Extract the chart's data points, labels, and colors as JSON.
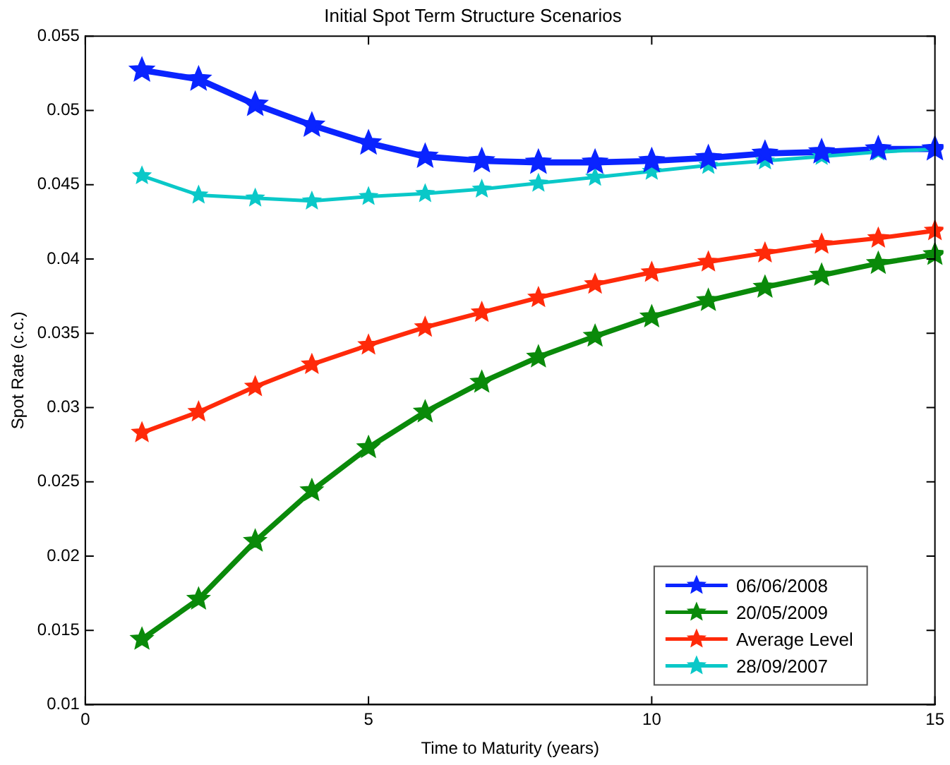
{
  "chart_data": {
    "type": "line",
    "title": "Initial Spot Term Structure Scenarios",
    "xlabel": "Time to Maturity (years)",
    "ylabel": "Spot Rate (c.c.)",
    "x": [
      1,
      2,
      3,
      4,
      5,
      6,
      7,
      8,
      9,
      10,
      11,
      12,
      13,
      14,
      15
    ],
    "series": [
      {
        "name": "06/06/2008",
        "color": "#0a24ff",
        "values": [
          0.0527,
          0.0521,
          0.0504,
          0.049,
          0.0478,
          0.0469,
          0.0466,
          0.0465,
          0.0465,
          0.0466,
          0.0468,
          0.0471,
          0.0472,
          0.0474,
          0.0474
        ]
      },
      {
        "name": "20/05/2009",
        "color": "#0a8a0a",
        "values": [
          0.0144,
          0.0171,
          0.021,
          0.0244,
          0.0273,
          0.0297,
          0.0317,
          0.0334,
          0.0348,
          0.0361,
          0.0372,
          0.0381,
          0.0389,
          0.0397,
          0.0403
        ]
      },
      {
        "name": "Average Level",
        "color": "#ff2a0a",
        "values": [
          0.0283,
          0.0297,
          0.0314,
          0.0329,
          0.0342,
          0.0354,
          0.0364,
          0.0374,
          0.0383,
          0.0391,
          0.0398,
          0.0404,
          0.041,
          0.0414,
          0.0419
        ]
      },
      {
        "name": "28/09/2007",
        "color": "#0ac8c8",
        "values": [
          0.0456,
          0.0443,
          0.0441,
          0.0439,
          0.0442,
          0.0444,
          0.0447,
          0.0451,
          0.0455,
          0.0459,
          0.0463,
          0.0466,
          0.0469,
          0.0472,
          0.0474
        ]
      }
    ],
    "xlim": [
      0,
      15
    ],
    "xticks": [
      0,
      5,
      10,
      15
    ],
    "ylim": [
      0.01,
      0.055
    ],
    "yticks": [
      0.01,
      0.015,
      0.02,
      0.025,
      0.03,
      0.035,
      0.04,
      0.045,
      0.05,
      0.055
    ],
    "grid": false,
    "legend": "bottom right",
    "marker": "star",
    "line_style": "solid"
  }
}
